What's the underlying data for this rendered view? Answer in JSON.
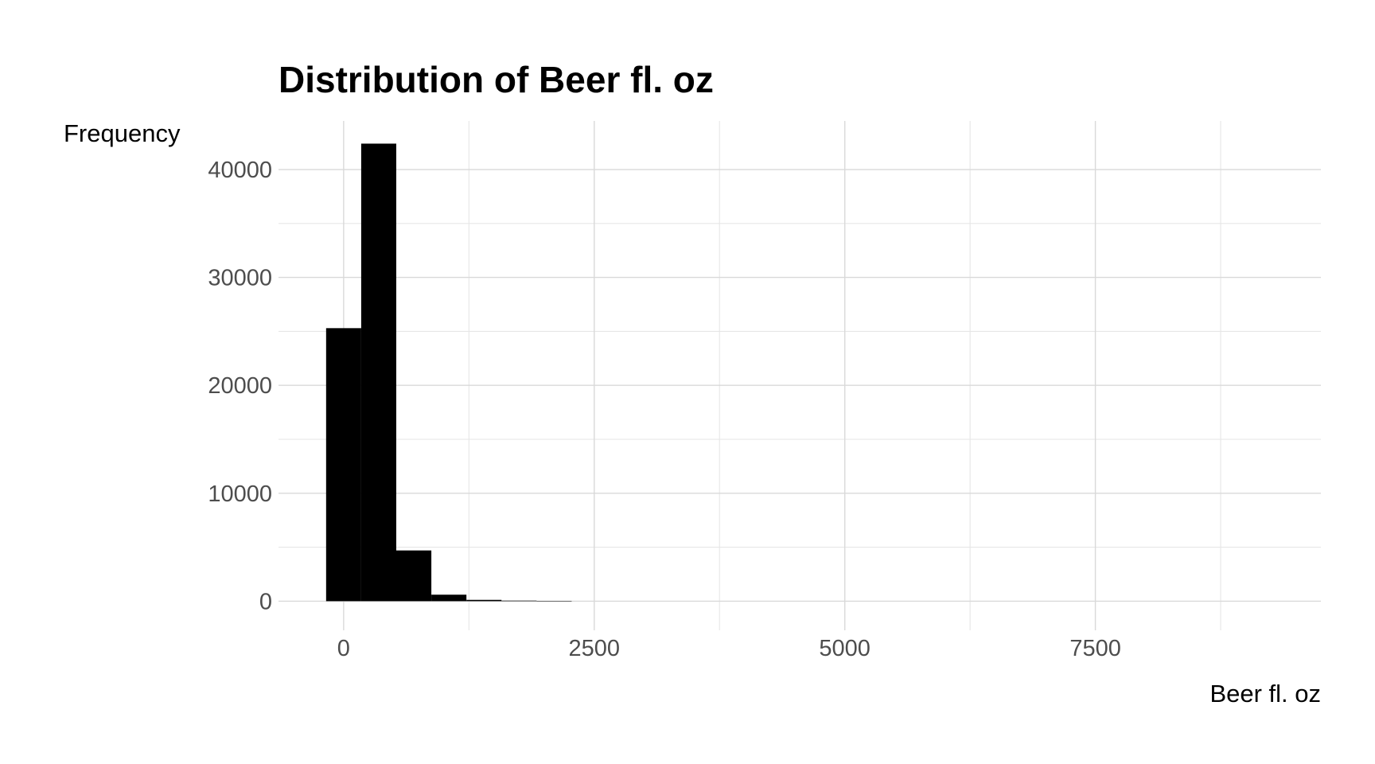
{
  "chart_data": {
    "type": "bar",
    "title": "Distribution of Beer fl. oz",
    "xlabel": "Beer fl. oz",
    "ylabel": "Frequency",
    "xlim": [
      -650,
      9750
    ],
    "ylim": [
      -2700,
      44500
    ],
    "x_ticks": [
      0,
      2500,
      5000,
      7500
    ],
    "x_minor": [
      1250,
      3750,
      6250,
      8750
    ],
    "y_ticks": [
      0,
      10000,
      20000,
      30000,
      40000
    ],
    "y_minor": [
      5000,
      15000,
      25000,
      35000
    ],
    "grid": true,
    "bar_color": "#000000",
    "bins": [
      {
        "x0": -175,
        "x1": 175,
        "value": 25300
      },
      {
        "x0": 175,
        "x1": 525,
        "value": 42400
      },
      {
        "x0": 525,
        "x1": 875,
        "value": 4700
      },
      {
        "x0": 875,
        "x1": 1225,
        "value": 600
      },
      {
        "x0": 1225,
        "x1": 1575,
        "value": 120
      },
      {
        "x0": 1575,
        "x1": 1925,
        "value": 50
      },
      {
        "x0": 1925,
        "x1": 2275,
        "value": 20
      }
    ]
  }
}
